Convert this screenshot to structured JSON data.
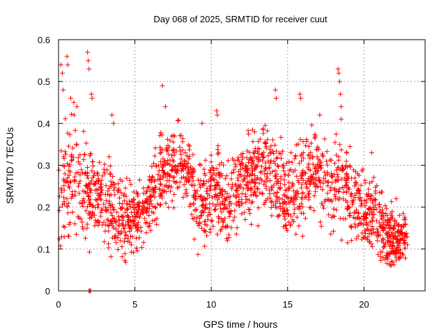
{
  "chart_data": {
    "type": "scatter",
    "title": "Day 068 of 2025, SRMTID for receiver cuut",
    "xlabel": "GPS time / hours",
    "ylabel": "SRMTID / TECUs",
    "xlim": [
      0,
      24
    ],
    "ylim": [
      0,
      0.6
    ],
    "x_ticks": [
      0,
      5,
      10,
      15,
      20
    ],
    "y_ticks": [
      0,
      0.1,
      0.2,
      0.3,
      0.4,
      0.5,
      0.6
    ],
    "x_tick_labels": [
      "0",
      "5",
      "10",
      "15",
      "20"
    ],
    "y_tick_labels": [
      "0",
      "0.1",
      "0.2",
      "0.3",
      "0.4",
      "0.5",
      "0.6"
    ],
    "grid": true,
    "marker": "+",
    "marker_color": "#ff0000",
    "series": [
      {
        "name": "SRMTID",
        "trend": [
          [
            0.0,
            0.22
          ],
          [
            0.5,
            0.26
          ],
          [
            1.0,
            0.27
          ],
          [
            1.5,
            0.26
          ],
          [
            2.0,
            0.24
          ],
          [
            2.5,
            0.22
          ],
          [
            3.0,
            0.22
          ],
          [
            3.5,
            0.21
          ],
          [
            4.0,
            0.18
          ],
          [
            4.5,
            0.17
          ],
          [
            5.0,
            0.18
          ],
          [
            5.5,
            0.19
          ],
          [
            6.0,
            0.21
          ],
          [
            6.5,
            0.26
          ],
          [
            7.0,
            0.3
          ],
          [
            7.5,
            0.3
          ],
          [
            8.0,
            0.31
          ],
          [
            8.5,
            0.29
          ],
          [
            9.0,
            0.2
          ],
          [
            9.5,
            0.21
          ],
          [
            10.0,
            0.25
          ],
          [
            10.5,
            0.24
          ],
          [
            11.0,
            0.19
          ],
          [
            11.5,
            0.24
          ],
          [
            12.0,
            0.26
          ],
          [
            12.5,
            0.27
          ],
          [
            13.0,
            0.28
          ],
          [
            13.5,
            0.29
          ],
          [
            14.0,
            0.28
          ],
          [
            14.5,
            0.26
          ],
          [
            15.0,
            0.22
          ],
          [
            15.5,
            0.24
          ],
          [
            16.0,
            0.26
          ],
          [
            16.5,
            0.28
          ],
          [
            17.0,
            0.29
          ],
          [
            17.5,
            0.27
          ],
          [
            18.0,
            0.24
          ],
          [
            18.5,
            0.26
          ],
          [
            19.0,
            0.23
          ],
          [
            19.5,
            0.22
          ],
          [
            20.0,
            0.19
          ],
          [
            20.5,
            0.2
          ],
          [
            21.0,
            0.18
          ],
          [
            21.5,
            0.14
          ],
          [
            22.0,
            0.12
          ],
          [
            22.5,
            0.13
          ],
          [
            22.75,
            0.13
          ]
        ],
        "spread": [
          [
            0.0,
            0.08
          ],
          [
            1.0,
            0.09
          ],
          [
            2.0,
            0.07
          ],
          [
            3.0,
            0.06
          ],
          [
            4.0,
            0.06
          ],
          [
            5.0,
            0.05
          ],
          [
            6.0,
            0.06
          ],
          [
            7.0,
            0.06
          ],
          [
            8.0,
            0.05
          ],
          [
            9.0,
            0.06
          ],
          [
            10.0,
            0.06
          ],
          [
            11.0,
            0.06
          ],
          [
            12.0,
            0.06
          ],
          [
            13.0,
            0.07
          ],
          [
            14.0,
            0.07
          ],
          [
            15.0,
            0.07
          ],
          [
            16.0,
            0.07
          ],
          [
            17.0,
            0.07
          ],
          [
            18.0,
            0.07
          ],
          [
            19.0,
            0.06
          ],
          [
            20.0,
            0.05
          ],
          [
            21.0,
            0.05
          ],
          [
            22.0,
            0.04
          ],
          [
            22.75,
            0.03
          ]
        ],
        "spikes": [
          [
            0.15,
            0.54
          ],
          [
            0.25,
            0.52
          ],
          [
            0.3,
            0.48
          ],
          [
            0.55,
            0.56
          ],
          [
            0.6,
            0.54
          ],
          [
            0.8,
            0.46
          ],
          [
            1.0,
            0.45
          ],
          [
            1.2,
            0.44
          ],
          [
            1.9,
            0.57
          ],
          [
            1.95,
            0.55
          ],
          [
            2.0,
            0.53
          ],
          [
            2.15,
            0.47
          ],
          [
            2.2,
            0.46
          ],
          [
            3.5,
            0.42
          ],
          [
            3.6,
            0.4
          ],
          [
            6.8,
            0.49
          ],
          [
            7.0,
            0.44
          ],
          [
            9.4,
            0.4
          ],
          [
            10.35,
            0.43
          ],
          [
            10.4,
            0.42
          ],
          [
            14.2,
            0.48
          ],
          [
            14.25,
            0.46
          ],
          [
            15.8,
            0.47
          ],
          [
            15.85,
            0.46
          ],
          [
            17.1,
            0.42
          ],
          [
            18.3,
            0.53
          ],
          [
            18.35,
            0.52
          ],
          [
            18.4,
            0.5
          ],
          [
            18.45,
            0.47
          ],
          [
            18.5,
            0.44
          ],
          [
            18.5,
            0.41
          ],
          [
            20.5,
            0.33
          ],
          [
            22.1,
            0.22
          ]
        ],
        "zeros": [
          [
            2.0,
            0.0
          ],
          [
            2.05,
            0.0
          ],
          [
            2.1,
            0.0
          ]
        ],
        "dense_cluster": [
          [
            21.2,
            0.09
          ],
          [
            21.5,
            0.08
          ],
          [
            21.7,
            0.07
          ],
          [
            21.9,
            0.08
          ],
          [
            22.0,
            0.1
          ],
          [
            22.3,
            0.12
          ],
          [
            22.5,
            0.14
          ],
          [
            22.7,
            0.12
          ]
        ]
      }
    ]
  }
}
